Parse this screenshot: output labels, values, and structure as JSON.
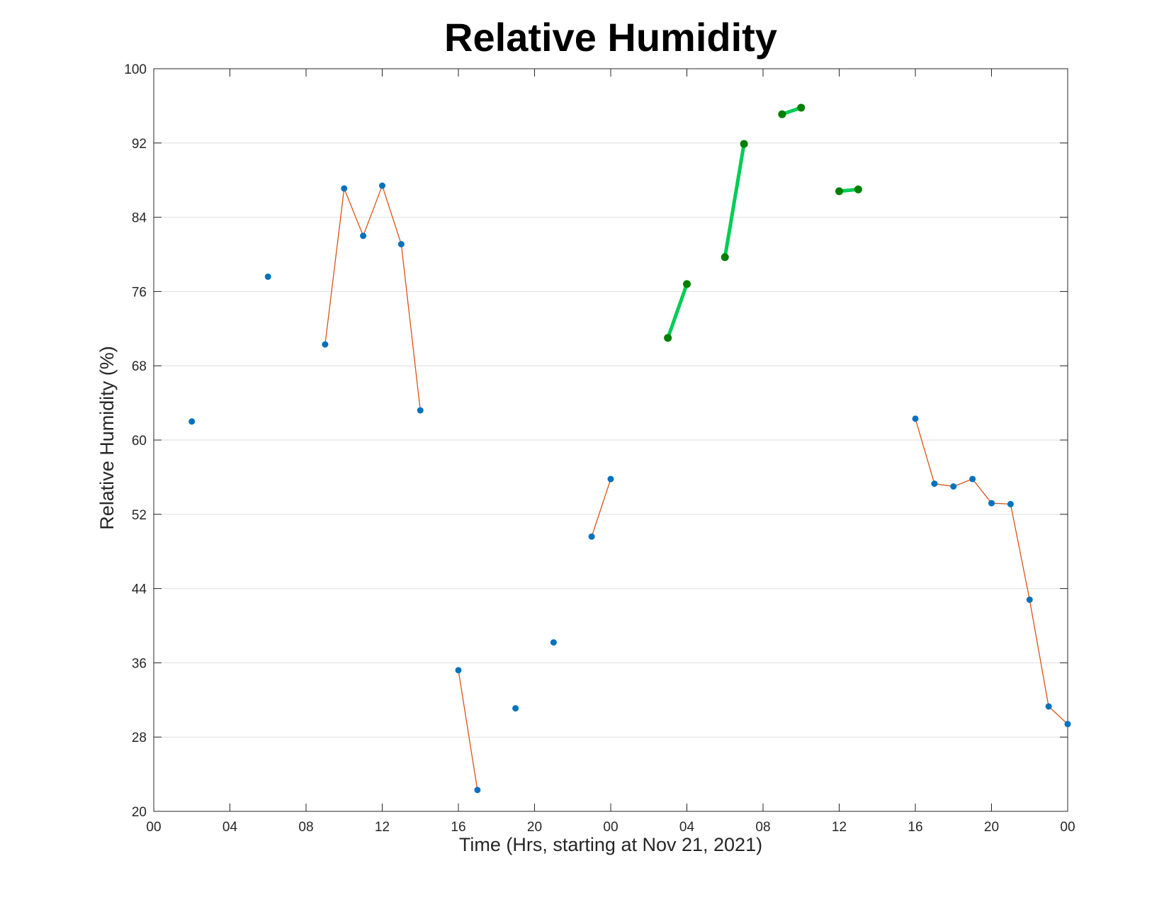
{
  "chart_data": {
    "type": "line",
    "title": "Relative Humidity",
    "xlabel": "Time (Hrs, starting at Nov 21, 2021)",
    "ylabel": "Relative Humidity (%)",
    "xlim": [
      0,
      48
    ],
    "ylim": [
      20,
      100
    ],
    "x_ticks": [
      {
        "x": 0,
        "label": "00"
      },
      {
        "x": 4,
        "label": "04"
      },
      {
        "x": 8,
        "label": "08"
      },
      {
        "x": 12,
        "label": "12"
      },
      {
        "x": 16,
        "label": "16"
      },
      {
        "x": 20,
        "label": "20"
      },
      {
        "x": 24,
        "label": "00"
      },
      {
        "x": 28,
        "label": "04"
      },
      {
        "x": 32,
        "label": "08"
      },
      {
        "x": 36,
        "label": "12"
      },
      {
        "x": 40,
        "label": "16"
      },
      {
        "x": 44,
        "label": "20"
      },
      {
        "x": 48,
        "label": "00"
      }
    ],
    "y_ticks": [
      20,
      28,
      36,
      44,
      52,
      60,
      68,
      76,
      84,
      92,
      100
    ],
    "grid": "horizontal",
    "colors": {
      "measured_marker": "#0072BD",
      "measured_line": "#D95319",
      "highlight_line": "#00CC55",
      "highlight_marker": "#007F00"
    },
    "series": [
      {
        "style": "measured",
        "segments": [
          [
            [
              2,
              62
            ]
          ],
          [
            [
              6,
              77.6
            ]
          ],
          [
            [
              9,
              70.3
            ],
            [
              10,
              87.1
            ],
            [
              11,
              82
            ],
            [
              12,
              87.4
            ],
            [
              13,
              81.1
            ],
            [
              14,
              63.2
            ]
          ],
          [
            [
              16,
              35.2
            ],
            [
              17,
              22.3
            ]
          ],
          [
            [
              19,
              31.1
            ]
          ],
          [
            [
              21,
              38.2
            ]
          ],
          [
            [
              23,
              49.6
            ],
            [
              24,
              55.8
            ]
          ],
          [
            [
              40,
              62.3
            ],
            [
              41,
              55.3
            ],
            [
              42,
              55
            ],
            [
              43,
              55.8
            ],
            [
              44,
              53.2
            ],
            [
              45,
              53.1
            ],
            [
              46,
              42.8
            ],
            [
              47,
              31.3
            ],
            [
              48,
              29.4
            ]
          ]
        ]
      },
      {
        "style": "highlight",
        "segments": [
          [
            [
              27,
              71
            ],
            [
              28,
              76.8
            ]
          ],
          [
            [
              30,
              79.7
            ],
            [
              31,
              91.9
            ]
          ],
          [
            [
              33,
              95.1
            ],
            [
              34,
              95.8
            ]
          ],
          [
            [
              36,
              86.8
            ],
            [
              37,
              87
            ]
          ]
        ]
      }
    ]
  }
}
